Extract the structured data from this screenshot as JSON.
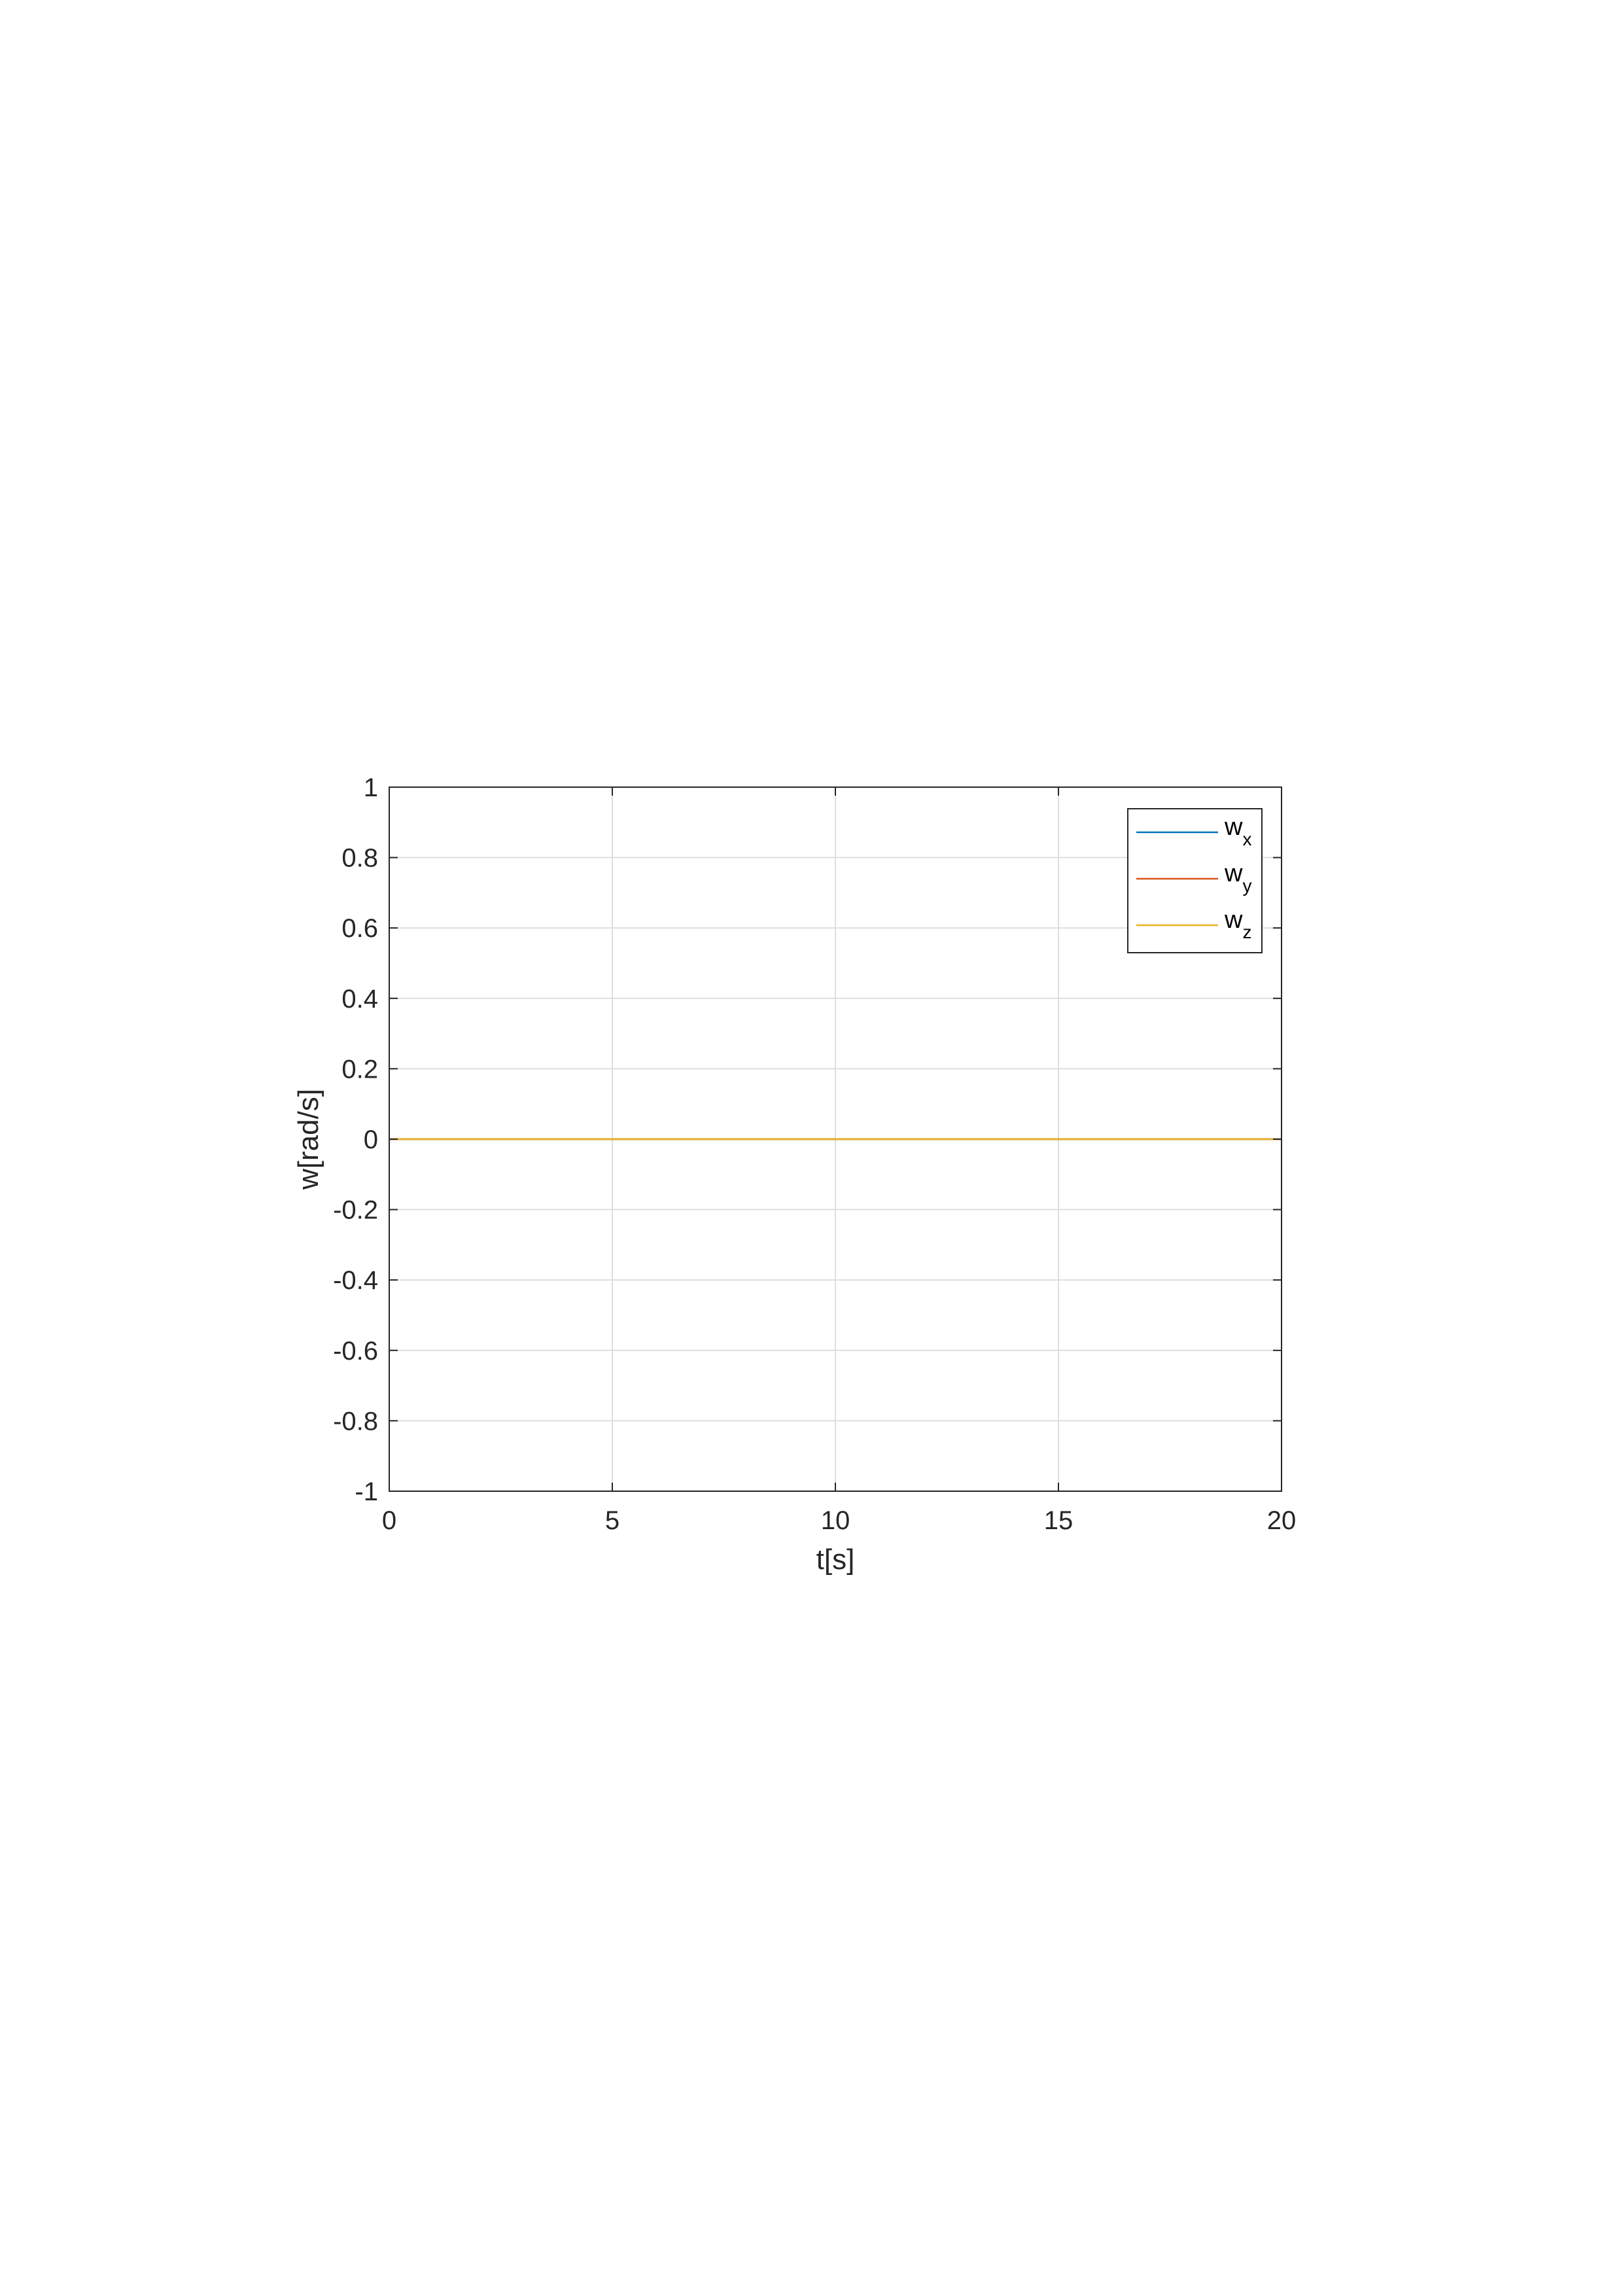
{
  "chart_data": {
    "type": "line",
    "xlabel": "t[s]",
    "ylabel": "w[rad/s]",
    "xlim": [
      0,
      20
    ],
    "ylim": [
      -1,
      1
    ],
    "xticks": [
      0,
      5,
      10,
      15,
      20
    ],
    "yticks": [
      -1,
      -0.8,
      -0.6,
      -0.4,
      -0.2,
      0,
      0.2,
      0.4,
      0.6,
      0.8,
      1
    ],
    "grid": true,
    "legend_position": "top-right",
    "x": [
      0,
      20
    ],
    "series": [
      {
        "name": "w",
        "subscript": "x",
        "color": "#0072BD",
        "values": [
          0,
          0
        ]
      },
      {
        "name": "w",
        "subscript": "y",
        "color": "#D95319",
        "values": [
          0,
          0
        ]
      },
      {
        "name": "w",
        "subscript": "z",
        "color": "#EDB120",
        "values": [
          0,
          0
        ]
      }
    ]
  }
}
